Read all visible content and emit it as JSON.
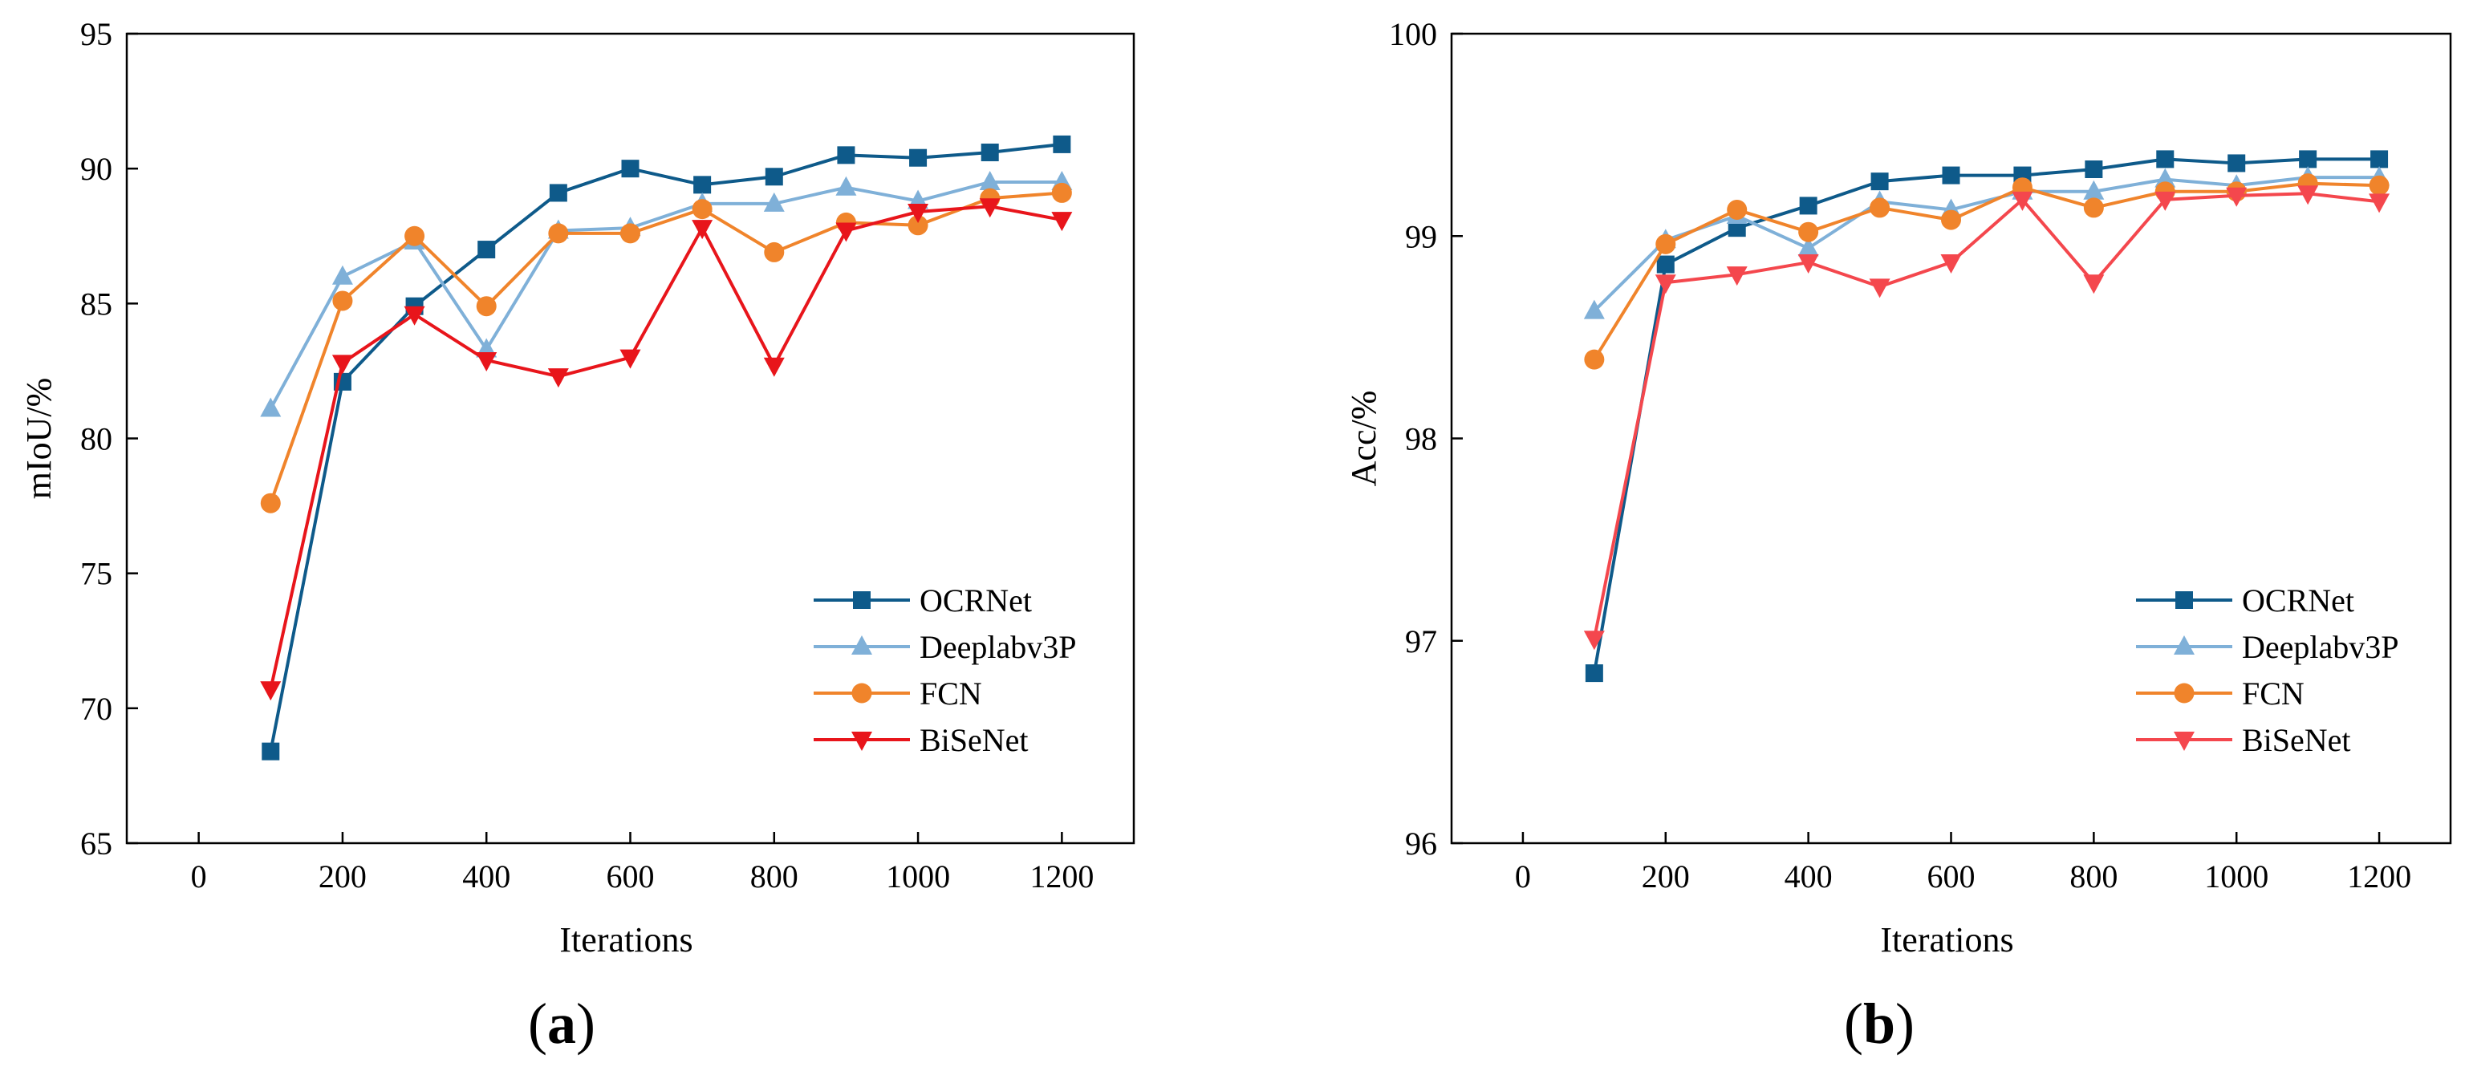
{
  "chart_data": [
    {
      "id": "a",
      "type": "line",
      "caption_letter": "a",
      "xlabel": "Iterations",
      "ylabel": "mIoU/%",
      "xlim": [
        -100,
        1300
      ],
      "ylim": [
        65,
        95
      ],
      "xticks": [
        0,
        200,
        400,
        600,
        800,
        1000,
        1200
      ],
      "yticks": [
        65,
        70,
        75,
        80,
        85,
        90,
        95
      ],
      "legend_position": "lower-right",
      "x": [
        100,
        200,
        300,
        400,
        500,
        600,
        700,
        800,
        900,
        1000,
        1100,
        1200
      ],
      "series": [
        {
          "name": "OCRNet",
          "color": "#0e5a8a",
          "marker": "square",
          "values": [
            68.4,
            82.1,
            84.9,
            87.0,
            89.1,
            90.0,
            89.4,
            89.7,
            90.5,
            90.4,
            90.6,
            90.9
          ]
        },
        {
          "name": "Deeplabv3P",
          "color": "#7fb0d8",
          "marker": "triangle-up",
          "values": [
            81.1,
            86.0,
            87.3,
            83.3,
            87.7,
            87.8,
            88.7,
            88.7,
            89.3,
            88.8,
            89.5,
            89.5
          ]
        },
        {
          "name": "FCN",
          "color": "#f0842b",
          "marker": "circle",
          "values": [
            77.6,
            85.1,
            87.5,
            84.9,
            87.6,
            87.6,
            88.5,
            86.9,
            88.0,
            87.9,
            88.9,
            89.1
          ]
        },
        {
          "name": "BiSeNet",
          "color": "#e8151b",
          "marker": "triangle-down",
          "values": [
            70.7,
            82.8,
            84.6,
            82.9,
            82.3,
            83.0,
            87.8,
            82.7,
            87.7,
            88.4,
            88.6,
            88.1
          ]
        }
      ]
    },
    {
      "id": "b",
      "type": "line",
      "caption_letter": "b",
      "xlabel": "Iterations",
      "ylabel": "Acc/%",
      "xlim": [
        -100,
        1300
      ],
      "ylim": [
        96,
        100
      ],
      "xticks": [
        0,
        200,
        400,
        600,
        800,
        1000,
        1200
      ],
      "yticks": [
        96,
        97,
        98,
        99,
        100
      ],
      "legend_position": "lower-right",
      "x": [
        100,
        200,
        300,
        400,
        500,
        600,
        700,
        800,
        900,
        1000,
        1100,
        1200
      ],
      "series": [
        {
          "name": "OCRNet",
          "color": "#0e5a8a",
          "marker": "square",
          "values": [
            96.84,
            98.86,
            99.04,
            99.15,
            99.27,
            99.3,
            99.3,
            99.33,
            99.38,
            99.36,
            99.38,
            99.38
          ]
        },
        {
          "name": "Deeplabv3P",
          "color": "#7fb0d8",
          "marker": "triangle-up",
          "values": [
            98.63,
            98.98,
            99.1,
            98.94,
            99.17,
            99.13,
            99.22,
            99.22,
            99.28,
            99.25,
            99.29,
            99.29
          ]
        },
        {
          "name": "FCN",
          "color": "#f0842b",
          "marker": "circle",
          "values": [
            98.39,
            98.96,
            99.13,
            99.02,
            99.14,
            99.08,
            99.24,
            99.14,
            99.22,
            99.22,
            99.26,
            99.25
          ]
        },
        {
          "name": "BiSeNet",
          "color": "#f4474d",
          "marker": "triangle-down",
          "values": [
            97.01,
            98.77,
            98.81,
            98.87,
            98.75,
            98.87,
            99.18,
            98.77,
            99.18,
            99.2,
            99.21,
            99.17
          ]
        }
      ]
    }
  ]
}
